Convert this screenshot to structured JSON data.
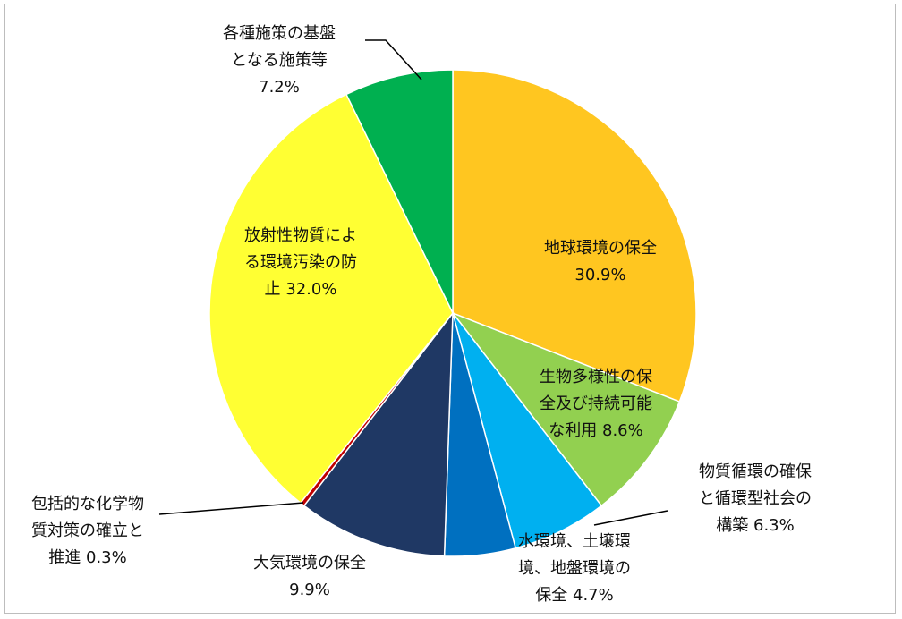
{
  "chart_data": {
    "type": "pie",
    "colors": {
      "global": "#FFC620",
      "biodiversity": "#92D050",
      "material_cycle": "#00B0F0",
      "water_soil": "#0070C0",
      "air": "#1F3864",
      "chemical": "#C00000",
      "radioactive": "#FFFF33",
      "foundation": "#00B050"
    },
    "slices": [
      {
        "key": "global",
        "lines": [
          "地球環境の保全",
          "30.9%"
        ],
        "value": 30.9
      },
      {
        "key": "biodiversity",
        "lines": [
          "生物多様性の保",
          "全及び持続可能",
          "な利用  8.6%"
        ],
        "value": 8.6
      },
      {
        "key": "material_cycle",
        "lines": [
          "物質循環の確保",
          "と循環型社会の",
          "構築 6.3%"
        ],
        "value": 6.3
      },
      {
        "key": "water_soil",
        "lines": [
          "水環境、土壌環",
          "境、地盤環境の",
          "保全 4.7%"
        ],
        "value": 4.7
      },
      {
        "key": "air",
        "lines": [
          "大気環境の保全",
          "9.9%"
        ],
        "value": 9.9
      },
      {
        "key": "chemical",
        "lines": [
          "包括的な化学物",
          "質対策の確立と",
          "推進 0.3%"
        ],
        "value": 0.3
      },
      {
        "key": "radioactive",
        "lines": [
          "放射性物質によ",
          "る環境汚染の防",
          "止 32.0%"
        ],
        "value": 32.0
      },
      {
        "key": "foundation",
        "lines": [
          "各種施策の基盤",
          "となる施策等",
          "7.2%"
        ],
        "value": 7.2
      }
    ]
  }
}
